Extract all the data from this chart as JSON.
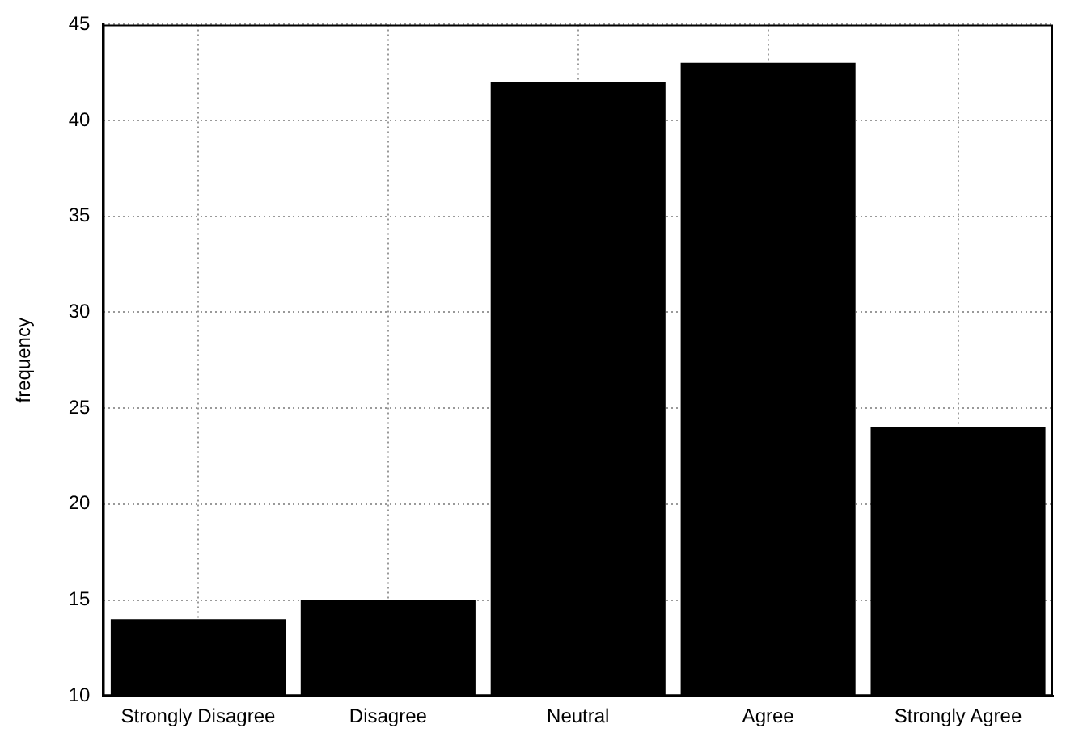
{
  "chart_data": {
    "type": "bar",
    "ylabel": "frequency",
    "categories": [
      "Strongly Disagree",
      "Disagree",
      "Neutral",
      "Agree",
      "Strongly Agree"
    ],
    "values": [
      14,
      15,
      42,
      43,
      24
    ],
    "color": "#000000",
    "ylim": [
      10,
      45
    ],
    "yticks": [
      10,
      15,
      20,
      25,
      30,
      35,
      40,
      45
    ],
    "grid": true,
    "legend": false
  }
}
